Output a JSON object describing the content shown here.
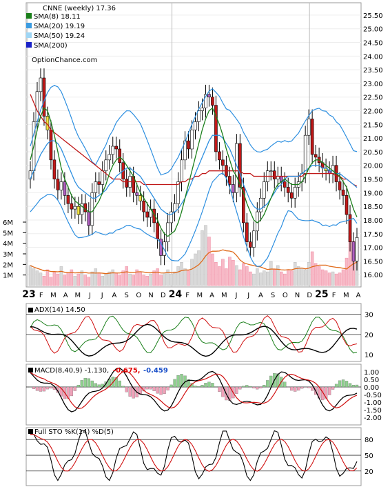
{
  "title": "CNNE (weekly) 17.36",
  "watermark": "OptionChance.com",
  "legend": [
    {
      "label": "SMA(8) 18.11",
      "color": "#1a7f1a"
    },
    {
      "label": "SMA(20) 19.19",
      "color": "#3b9be0"
    },
    {
      "label": "SMA(50) 19.24",
      "color": "#9fd6f5"
    },
    {
      "label": "SMA(200)",
      "color": "#1a22c8"
    }
  ],
  "x_labels": [
    "23",
    "F",
    "M",
    "A",
    "M",
    "J",
    "J",
    "A",
    "S",
    "O",
    "N",
    "D",
    "24",
    "F",
    "M",
    "A",
    "M",
    "J",
    "J",
    "A",
    "S",
    "O",
    "N",
    "D",
    "25",
    "F",
    "M",
    "A"
  ],
  "price_ticks": [
    "25.50",
    "25.00",
    "24.50",
    "24.00",
    "23.50",
    "23.00",
    "22.50",
    "22.00",
    "21.50",
    "21.00",
    "20.50",
    "20.00",
    "19.50",
    "19.00",
    "18.50",
    "18.00",
    "17.50",
    "17.00",
    "16.50",
    "16.00"
  ],
  "volume_ticks": [
    "6M",
    "5M",
    "4M",
    "3M",
    "2M",
    "1M"
  ],
  "adx": {
    "label": "ADX(14) 14.50",
    "ticks": [
      "30",
      "20",
      "10"
    ]
  },
  "macd": {
    "label": "MACD(8,40,9) -1.130,",
    "val1": "-0.675,",
    "val2": "-0.459",
    "ticks": [
      "1.00",
      "0.50",
      "0.00",
      "-0.50",
      "-1.00",
      "-1.50",
      "-2.00"
    ]
  },
  "sto": {
    "label": "Full STO %K(14) %D(5)",
    "ticks": [
      "80",
      "50",
      "20"
    ]
  },
  "chart_data": {
    "type": "line",
    "title": "CNNE (weekly) 17.36",
    "ylim": [
      15.6,
      25.7
    ],
    "x_labels": [
      "23",
      "F",
      "M",
      "A",
      "M",
      "J",
      "J",
      "A",
      "S",
      "O",
      "N",
      "D",
      "24",
      "F",
      "M",
      "A",
      "M",
      "J",
      "J",
      "A",
      "S",
      "O",
      "N",
      "D",
      "25",
      "F",
      "M",
      "A"
    ],
    "close": [
      19.8,
      21.6,
      22.7,
      23.2,
      21.8,
      21.3,
      20.2,
      19.5,
      19.1,
      19.4,
      18.9,
      18.6,
      18.4,
      18.5,
      18.2,
      18.6,
      18.3,
      17.8,
      19.0,
      19.4,
      19.3,
      19.8,
      20.2,
      20.4,
      20.7,
      20.6,
      20.1,
      19.5,
      19.2,
      19.6,
      19.0,
      18.9,
      18.7,
      18.3,
      18.1,
      18.4,
      17.9,
      17.3,
      16.7,
      17.2,
      17.9,
      18.3,
      18.6,
      19.4,
      20.2,
      20.9,
      20.6,
      21.3,
      21.6,
      22.0,
      22.1,
      22.6,
      22.5,
      22.2,
      20.5,
      20.2,
      20.0,
      19.6,
      19.3,
      19.0,
      20.8,
      19.2,
      17.9,
      17.2,
      17.0,
      17.6,
      18.3,
      18.8,
      19.4,
      19.8,
      19.8,
      19.5,
      19.6,
      19.4,
      19.2,
      19.0,
      18.8,
      19.2,
      19.4,
      19.7,
      21.1,
      21.7,
      20.4,
      20.3,
      20.1,
      19.9,
      19.8,
      19.7,
      20.0,
      19.4,
      19.1,
      18.9,
      18.2,
      17.2,
      16.5,
      17.36
    ],
    "sma8": [
      20.2,
      20.7,
      21.3,
      21.8,
      22.1,
      22.0,
      21.6,
      21.1,
      20.5,
      19.9,
      19.5,
      19.2,
      18.9,
      18.7,
      18.6,
      18.5,
      18.4,
      18.3,
      18.3,
      18.5,
      18.7,
      19.0,
      19.3,
      19.7,
      20.0,
      20.2,
      20.3,
      20.2,
      20.0,
      19.8,
      19.6,
      19.3,
      19.0,
      18.8,
      18.6,
      18.4,
      18.2,
      18.0,
      17.7,
      17.5,
      17.4,
      17.5,
      17.6,
      17.9,
      18.3,
      18.8,
      19.3,
      19.8,
      20.3,
      20.8,
      21.3,
      21.7,
      22.0,
      22.1,
      21.8,
      21.5,
      21.1,
      20.6,
      20.2,
      19.8,
      19.6,
      19.3,
      19.0,
      18.6,
      18.3,
      18.0,
      17.9,
      18.0,
      18.2,
      18.5,
      18.8,
      19.1,
      19.3,
      19.4,
      19.5,
      19.4,
      19.3,
      19.3,
      19.3,
      19.4,
      19.6,
      19.9,
      20.1,
      20.2,
      20.2,
      20.1,
      20.0,
      19.9,
      19.8,
      19.7,
      19.6,
      19.4,
      19.2,
      18.8,
      18.4,
      18.11
    ],
    "sma20": [
      19.5,
      19.8,
      20.1,
      20.4,
      20.6,
      20.8,
      20.9,
      20.9,
      20.8,
      20.6,
      20.3,
      20.0,
      19.7,
      19.4,
      19.2,
      19.1,
      19.0,
      18.9,
      18.8,
      18.8,
      18.9,
      19.0,
      19.1,
      19.3,
      19.4,
      19.6,
      19.7,
      19.8,
      19.9,
      19.9,
      19.8,
      19.7,
      19.6,
      19.4,
      19.2,
      19.0,
      18.8,
      18.6,
      18.4,
      18.3,
      18.2,
      18.2,
      18.3,
      18.4,
      18.6,
      18.8,
      19.1,
      19.4,
      19.7,
      20.0,
      20.3,
      20.6,
      20.9,
      21.1,
      21.1,
      21.1,
      21.0,
      20.8,
      20.6,
      20.3,
      20.0,
      19.7,
      19.3,
      19.0,
      18.7,
      18.5,
      18.4,
      18.4,
      18.5,
      18.6,
      18.8,
      19.0,
      19.2,
      19.3,
      19.5,
      19.6,
      19.6,
      19.6,
      19.6,
      19.7,
      19.8,
      19.9,
      20.0,
      20.0,
      20.0,
      19.9,
      19.9,
      19.8,
      19.8,
      19.7,
      19.7,
      19.6,
      19.5,
      19.4,
      19.3,
      19.19
    ],
    "sma50": [
      22.6,
      22.3,
      22.0,
      21.8,
      21.6,
      21.5,
      21.3,
      21.2,
      21.1,
      21.0,
      20.9,
      20.8,
      20.7,
      20.6,
      20.5,
      20.4,
      20.3,
      20.2,
      20.1,
      20.0,
      19.9,
      19.8,
      19.7,
      19.6,
      19.5,
      19.5,
      19.5,
      19.4,
      19.4,
      19.4,
      19.4,
      19.4,
      19.4,
      19.3,
      19.3,
      19.3,
      19.3,
      19.3,
      19.3,
      19.3,
      19.3,
      19.3,
      19.3,
      19.3,
      19.4,
      19.4,
      19.5,
      19.5,
      19.6,
      19.6,
      19.7,
      19.7,
      19.8,
      19.8,
      19.8,
      19.8,
      19.8,
      19.8,
      19.8,
      19.8,
      19.8,
      19.8,
      19.7,
      19.7,
      19.7,
      19.6,
      19.6,
      19.6,
      19.6,
      19.6,
      19.6,
      19.6,
      19.6,
      19.6,
      19.6,
      19.6,
      19.6,
      19.6,
      19.6,
      19.6,
      19.7,
      19.7,
      19.7,
      19.7,
      19.7,
      19.7,
      19.7,
      19.7,
      19.7,
      19.6,
      19.6,
      19.5,
      19.5,
      19.4,
      19.3,
      19.24
    ],
    "volume_M": [
      1.9,
      1.6,
      1.4,
      1.2,
      0.9,
      1.5,
      0.8,
      1.3,
      1.1,
      1.8,
      1.0,
      1.2,
      1.5,
      0.9,
      1.1,
      1.4,
      1.0,
      0.8,
      1.3,
      1.6,
      1.2,
      0.9,
      1.1,
      1.3,
      1.5,
      1.2,
      1.0,
      1.4,
      1.8,
      1.1,
      1.0,
      1.5,
      1.3,
      1.0,
      0.9,
      1.1,
      1.4,
      1.6,
      1.0,
      1.2,
      1.5,
      1.1,
      1.3,
      1.8,
      2.2,
      1.6,
      1.4,
      2.5,
      3.0,
      3.3,
      5.2,
      5.7,
      4.6,
      3.0,
      2.2,
      1.8,
      2.5,
      1.6,
      2.7,
      2.4,
      1.9,
      1.5,
      2.1,
      1.8,
      1.3,
      1.1,
      1.6,
      1.2,
      1.4,
      1.3,
      2.3,
      1.5,
      1.9,
      1.3,
      1.1,
      1.5,
      1.4,
      2.2,
      1.8,
      1.6,
      1.5,
      2.2,
      3.2,
      2.1,
      1.8,
      1.5,
      1.4,
      1.2,
      1.3,
      1.1,
      1.2,
      1.5,
      2.6,
      4.7,
      4.2,
      2.9
    ]
  }
}
